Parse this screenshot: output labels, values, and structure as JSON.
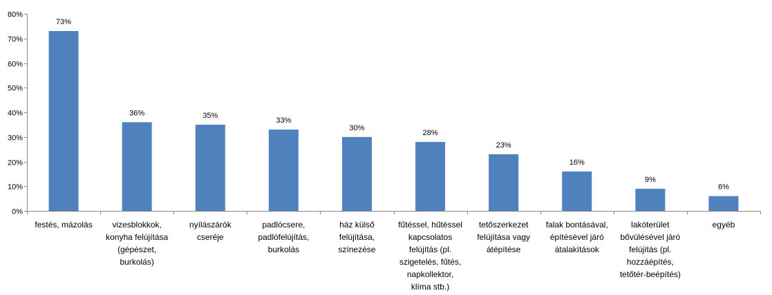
{
  "chart_data": {
    "type": "bar",
    "categories": [
      "festés, mázolás",
      "vizesblokkok, konyha felújítása (gépészet, burkolás)",
      "nyílászárók cseréje",
      "padlócsere, padlófelújítás, burkolás",
      "ház külső felújítása, színezése",
      "fűtéssel, hűtéssel kapcsolatos felújítás (pl. szigetelés, fűtés, napkollektor, klíma stb.)",
      "tetőszerkezet felújítása vagy átépítése",
      "falak bontásával, építésével járó átalakítások",
      "lakóterület bővülésével járó felújítás (pl. hozzáépítés, tetőtér-beépítés)",
      "egyéb"
    ],
    "category_lines": [
      [
        "festés, mázolás"
      ],
      [
        "vizesblokkok,",
        "konyha felújítása",
        "(gépészet,",
        "burkolás)"
      ],
      [
        "nyílászárók",
        "cseréje"
      ],
      [
        "padlócsere,",
        "padlófelújítás,",
        "burkolás"
      ],
      [
        "ház külső",
        "felújítása,",
        "színezése"
      ],
      [
        "fűtéssel, hűtéssel",
        "kapcsolatos",
        "felújítás (pl.",
        "szigetelés, fűtés,",
        "napkollektor,",
        "klíma stb.)"
      ],
      [
        "tetőszerkezet",
        "felújítása vagy",
        "átépítése"
      ],
      [
        "falak bontásával,",
        "építésével járó",
        "átalakítások"
      ],
      [
        "lakóterület",
        "bővülésével járó",
        "felújítás (pl.",
        "hozzáépítés,",
        "tetőtér-beépítés)"
      ],
      [
        "egyéb"
      ]
    ],
    "values": [
      73,
      36,
      35,
      33,
      30,
      28,
      23,
      16,
      9,
      6
    ],
    "data_labels": [
      "73%",
      "36%",
      "35%",
      "33%",
      "30%",
      "28%",
      "23%",
      "16%",
      "9%",
      "6%"
    ],
    "y_ticks": [
      0,
      10,
      20,
      30,
      40,
      50,
      60,
      70,
      80
    ],
    "y_tick_labels": [
      "0%",
      "10%",
      "20%",
      "30%",
      "40%",
      "50%",
      "60%",
      "70%",
      "80%"
    ],
    "ylim": [
      0,
      80
    ],
    "title": "",
    "xlabel": "",
    "ylabel": "",
    "grid": false,
    "legend": "none",
    "bar_color": "#4f81bd",
    "axis_color": "#868686"
  }
}
